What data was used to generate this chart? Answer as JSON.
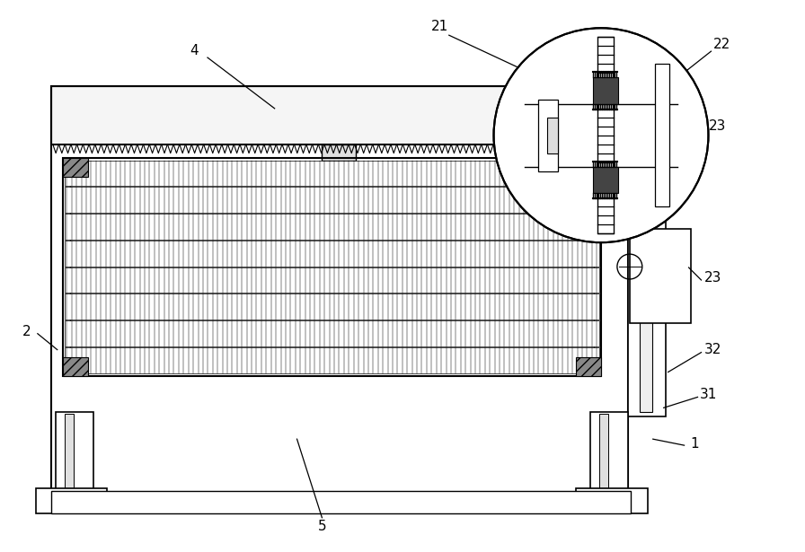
{
  "bg_color": "#ffffff",
  "fig_width": 8.96,
  "fig_height": 6.15
}
